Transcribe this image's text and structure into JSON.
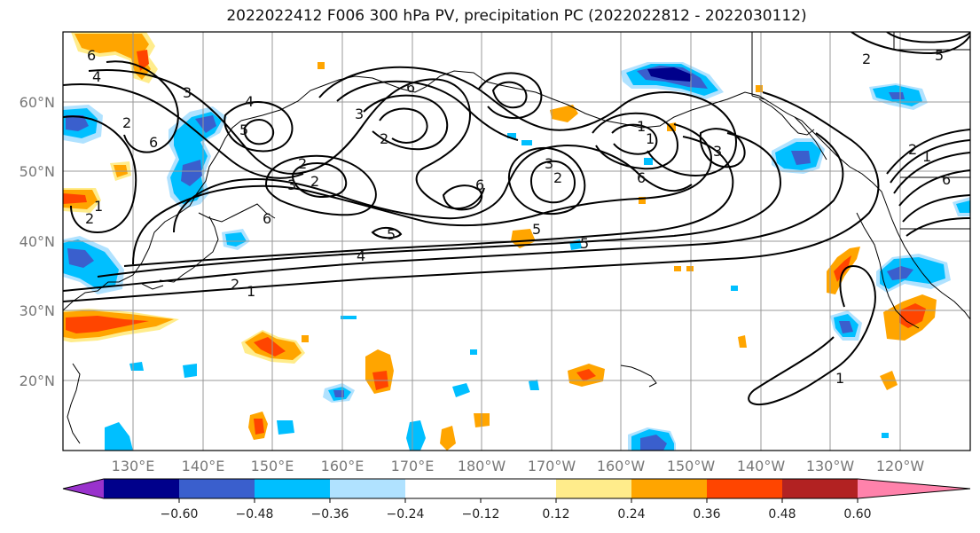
{
  "title": "2022022412 F006 300 hPa PV, precipitation PC (2022022812 - 2022030112)",
  "latitude_labels": [
    "60°N",
    "50°N",
    "40°N",
    "30°N",
    "20°N"
  ],
  "longitude_labels": [
    "130°E",
    "140°E",
    "150°E",
    "160°E",
    "170°E",
    "180°W",
    "170°W",
    "160°W",
    "150°W",
    "140°W",
    "130°W",
    "120°W"
  ],
  "colorbar": {
    "colors": [
      "#9932cc",
      "#00008b",
      "#3a5fcd",
      "#00bfff",
      "#b0e2ff",
      "#ffffff",
      "#ffec8b",
      "#ffa500",
      "#ff4500",
      "#b22222",
      "#ff82ab"
    ],
    "tick_labels": [
      "−0.60",
      "−0.48",
      "−0.36",
      "−0.24",
      "−0.12",
      "0.12",
      "0.24",
      "0.36",
      "0.48",
      "0.60"
    ]
  },
  "contour_labels": [
    "6",
    "4",
    "3",
    "2",
    "1",
    "6",
    "2",
    "4",
    "5",
    "2",
    "3",
    "2",
    "6",
    "5",
    "4",
    "2",
    "1",
    "3",
    "2",
    "6",
    "6",
    "5",
    "3",
    "1",
    "2",
    "1",
    "3",
    "5",
    "6",
    "1",
    "2",
    "1",
    "6",
    "5",
    "2"
  ],
  "colors": {
    "contour": "#000000",
    "grid": "#999999",
    "coast": "#000000"
  }
}
